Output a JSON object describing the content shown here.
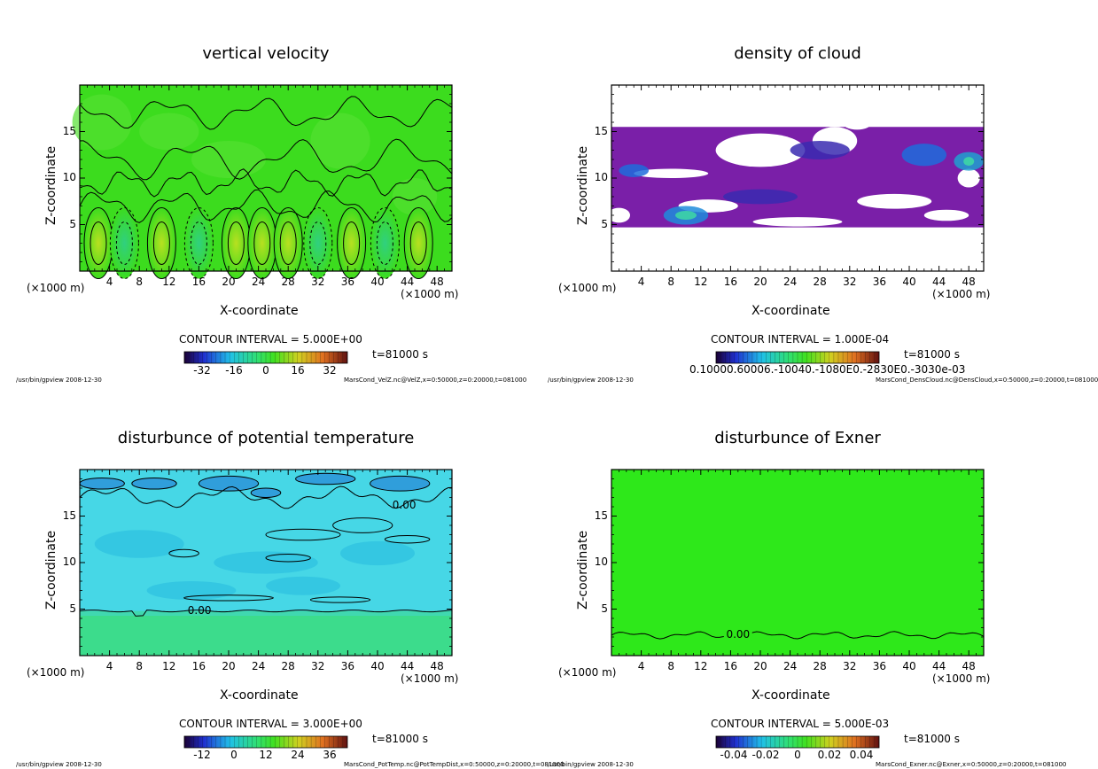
{
  "chart_data": [
    {
      "type": "heatmap",
      "title": "vertical velocity",
      "xlabel": "X-coordinate",
      "ylabel": "Z-coordinate",
      "x_unit_left": "(×1000 m)",
      "x_unit_right": "(×1000 m)",
      "xticks": [
        4,
        8,
        12,
        16,
        20,
        24,
        28,
        32,
        36,
        40,
        44,
        48
      ],
      "yticks": [
        5,
        10,
        15
      ],
      "xlim": [
        0,
        50
      ],
      "ylim": [
        0,
        20
      ],
      "contour_interval": "CONTOUR INTERVAL = 5.000E+00",
      "time": "t=81000 s",
      "colorbar_ticks": [
        "-32",
        "-16",
        "0",
        "16",
        "32"
      ],
      "footer_left": "/usr/bin/gpview  2008-12-30",
      "footer_right": "MarsCond_VelZ.nc@VelZ,x=0:50000,z=0:20000,t=081000",
      "colors": {
        "background": "#3cdc1e",
        "contour": "#000000"
      }
    },
    {
      "type": "heatmap",
      "title": "density of cloud",
      "xlabel": "X-coordinate",
      "ylabel": "Z-coordinate",
      "x_unit_left": "(×1000 m)",
      "x_unit_right": "(×1000 m)",
      "xticks": [
        4,
        8,
        12,
        16,
        20,
        24,
        28,
        32,
        36,
        40,
        44,
        48
      ],
      "yticks": [
        5,
        10,
        15
      ],
      "xlim": [
        0,
        50
      ],
      "ylim": [
        0,
        20
      ],
      "contour_interval": "CONTOUR INTERVAL = 1.000E-04",
      "time": "t=81000 s",
      "colorbar_ticks": [
        "0.10000.60006.-10040.-1080E0.-2830E0.-3030e-03"
      ],
      "footer_left": "/usr/bin/gpview  2008-12-30",
      "footer_right": "MarsCond_DensCloud.nc@DensCloud,x=0:50000,z=0:20000,t=081000",
      "colors": {
        "cloud": "#7a1fa8",
        "cloud_dense": "#1e3cdc"
      }
    },
    {
      "type": "heatmap",
      "title": "disturbunce of potential temperature",
      "xlabel": "X-coordinate",
      "ylabel": "Z-coordinate",
      "x_unit_left": "(×1000 m)",
      "x_unit_right": "(×1000 m)",
      "xticks": [
        4,
        8,
        12,
        16,
        20,
        24,
        28,
        32,
        36,
        40,
        44,
        48
      ],
      "yticks": [
        5,
        10,
        15
      ],
      "xlim": [
        0,
        50
      ],
      "ylim": [
        0,
        20
      ],
      "contour_label_upper": "0.00",
      "contour_label_lower": "0.00",
      "contour_interval": "CONTOUR INTERVAL = 3.000E+00",
      "time": "t=81000 s",
      "colorbar_ticks": [
        "-12",
        "0",
        "12",
        "24",
        "36"
      ],
      "footer_left": "/usr/bin/gpview  2008-12-30",
      "footer_right": "MarsCond_PotTemp.nc@PotTempDist,x=0:50000,z=0:20000,t=081000",
      "colors": {
        "upper": "#46d7e6",
        "lower": "#3cdc8c"
      }
    },
    {
      "type": "heatmap",
      "title": "disturbunce of Exner",
      "xlabel": "X-coordinate",
      "ylabel": "Z-coordinate",
      "x_unit_left": "(×1000 m)",
      "x_unit_right": "(×1000 m)",
      "xticks": [
        4,
        8,
        12,
        16,
        20,
        24,
        28,
        32,
        36,
        40,
        44,
        48
      ],
      "yticks": [
        5,
        10,
        15
      ],
      "xlim": [
        0,
        50
      ],
      "ylim": [
        0,
        20
      ],
      "contour_label": "0.00",
      "contour_interval": "CONTOUR INTERVAL = 5.000E-03",
      "time": "t=81000 s",
      "colorbar_ticks": [
        "-0.04",
        "-0.02",
        "0",
        "0.02",
        "0.04"
      ],
      "footer_left": "/usr/bin/gpview  2008-12-30",
      "footer_right": "MarsCond_Exner.nc@Exner,x=0:50000,z=0:20000,t=081000",
      "colors": {
        "background": "#2ee81a"
      }
    }
  ]
}
